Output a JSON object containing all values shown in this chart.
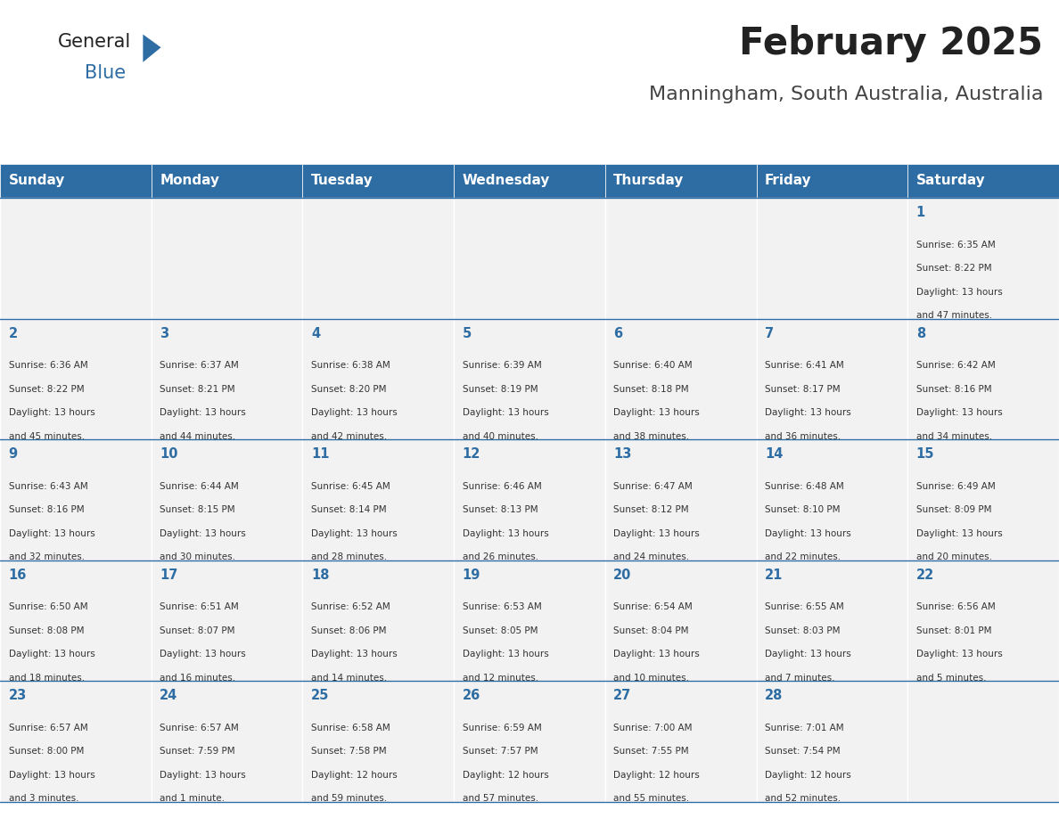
{
  "title": "February 2025",
  "subtitle": "Manningham, South Australia, Australia",
  "header_bg": "#2E6DA4",
  "header_text": "#FFFFFF",
  "cell_bg": "#F2F2F2",
  "border_color": "#2E6DA4",
  "day_headers": [
    "Sunday",
    "Monday",
    "Tuesday",
    "Wednesday",
    "Thursday",
    "Friday",
    "Saturday"
  ],
  "title_color": "#222222",
  "subtitle_color": "#444444",
  "logo_general_color": "#222222",
  "logo_blue_color": "#2E6DA4",
  "days": [
    {
      "day": 1,
      "col": 6,
      "row": 0,
      "sunrise": "6:35 AM",
      "sunset": "8:22 PM",
      "daylight": "13 hours and 47 minutes."
    },
    {
      "day": 2,
      "col": 0,
      "row": 1,
      "sunrise": "6:36 AM",
      "sunset": "8:22 PM",
      "daylight": "13 hours and 45 minutes."
    },
    {
      "day": 3,
      "col": 1,
      "row": 1,
      "sunrise": "6:37 AM",
      "sunset": "8:21 PM",
      "daylight": "13 hours and 44 minutes."
    },
    {
      "day": 4,
      "col": 2,
      "row": 1,
      "sunrise": "6:38 AM",
      "sunset": "8:20 PM",
      "daylight": "13 hours and 42 minutes."
    },
    {
      "day": 5,
      "col": 3,
      "row": 1,
      "sunrise": "6:39 AM",
      "sunset": "8:19 PM",
      "daylight": "13 hours and 40 minutes."
    },
    {
      "day": 6,
      "col": 4,
      "row": 1,
      "sunrise": "6:40 AM",
      "sunset": "8:18 PM",
      "daylight": "13 hours and 38 minutes."
    },
    {
      "day": 7,
      "col": 5,
      "row": 1,
      "sunrise": "6:41 AM",
      "sunset": "8:17 PM",
      "daylight": "13 hours and 36 minutes."
    },
    {
      "day": 8,
      "col": 6,
      "row": 1,
      "sunrise": "6:42 AM",
      "sunset": "8:16 PM",
      "daylight": "13 hours and 34 minutes."
    },
    {
      "day": 9,
      "col": 0,
      "row": 2,
      "sunrise": "6:43 AM",
      "sunset": "8:16 PM",
      "daylight": "13 hours and 32 minutes."
    },
    {
      "day": 10,
      "col": 1,
      "row": 2,
      "sunrise": "6:44 AM",
      "sunset": "8:15 PM",
      "daylight": "13 hours and 30 minutes."
    },
    {
      "day": 11,
      "col": 2,
      "row": 2,
      "sunrise": "6:45 AM",
      "sunset": "8:14 PM",
      "daylight": "13 hours and 28 minutes."
    },
    {
      "day": 12,
      "col": 3,
      "row": 2,
      "sunrise": "6:46 AM",
      "sunset": "8:13 PM",
      "daylight": "13 hours and 26 minutes."
    },
    {
      "day": 13,
      "col": 4,
      "row": 2,
      "sunrise": "6:47 AM",
      "sunset": "8:12 PM",
      "daylight": "13 hours and 24 minutes."
    },
    {
      "day": 14,
      "col": 5,
      "row": 2,
      "sunrise": "6:48 AM",
      "sunset": "8:10 PM",
      "daylight": "13 hours and 22 minutes."
    },
    {
      "day": 15,
      "col": 6,
      "row": 2,
      "sunrise": "6:49 AM",
      "sunset": "8:09 PM",
      "daylight": "13 hours and 20 minutes."
    },
    {
      "day": 16,
      "col": 0,
      "row": 3,
      "sunrise": "6:50 AM",
      "sunset": "8:08 PM",
      "daylight": "13 hours and 18 minutes."
    },
    {
      "day": 17,
      "col": 1,
      "row": 3,
      "sunrise": "6:51 AM",
      "sunset": "8:07 PM",
      "daylight": "13 hours and 16 minutes."
    },
    {
      "day": 18,
      "col": 2,
      "row": 3,
      "sunrise": "6:52 AM",
      "sunset": "8:06 PM",
      "daylight": "13 hours and 14 minutes."
    },
    {
      "day": 19,
      "col": 3,
      "row": 3,
      "sunrise": "6:53 AM",
      "sunset": "8:05 PM",
      "daylight": "13 hours and 12 minutes."
    },
    {
      "day": 20,
      "col": 4,
      "row": 3,
      "sunrise": "6:54 AM",
      "sunset": "8:04 PM",
      "daylight": "13 hours and 10 minutes."
    },
    {
      "day": 21,
      "col": 5,
      "row": 3,
      "sunrise": "6:55 AM",
      "sunset": "8:03 PM",
      "daylight": "13 hours and 7 minutes."
    },
    {
      "day": 22,
      "col": 6,
      "row": 3,
      "sunrise": "6:56 AM",
      "sunset": "8:01 PM",
      "daylight": "13 hours and 5 minutes."
    },
    {
      "day": 23,
      "col": 0,
      "row": 4,
      "sunrise": "6:57 AM",
      "sunset": "8:00 PM",
      "daylight": "13 hours and 3 minutes."
    },
    {
      "day": 24,
      "col": 1,
      "row": 4,
      "sunrise": "6:57 AM",
      "sunset": "7:59 PM",
      "daylight": "13 hours and 1 minute."
    },
    {
      "day": 25,
      "col": 2,
      "row": 4,
      "sunrise": "6:58 AM",
      "sunset": "7:58 PM",
      "daylight": "12 hours and 59 minutes."
    },
    {
      "day": 26,
      "col": 3,
      "row": 4,
      "sunrise": "6:59 AM",
      "sunset": "7:57 PM",
      "daylight": "12 hours and 57 minutes."
    },
    {
      "day": 27,
      "col": 4,
      "row": 4,
      "sunrise": "7:00 AM",
      "sunset": "7:55 PM",
      "daylight": "12 hours and 55 minutes."
    },
    {
      "day": 28,
      "col": 5,
      "row": 4,
      "sunrise": "7:01 AM",
      "sunset": "7:54 PM",
      "daylight": "12 hours and 52 minutes."
    }
  ],
  "num_rows": 5,
  "num_cols": 7
}
